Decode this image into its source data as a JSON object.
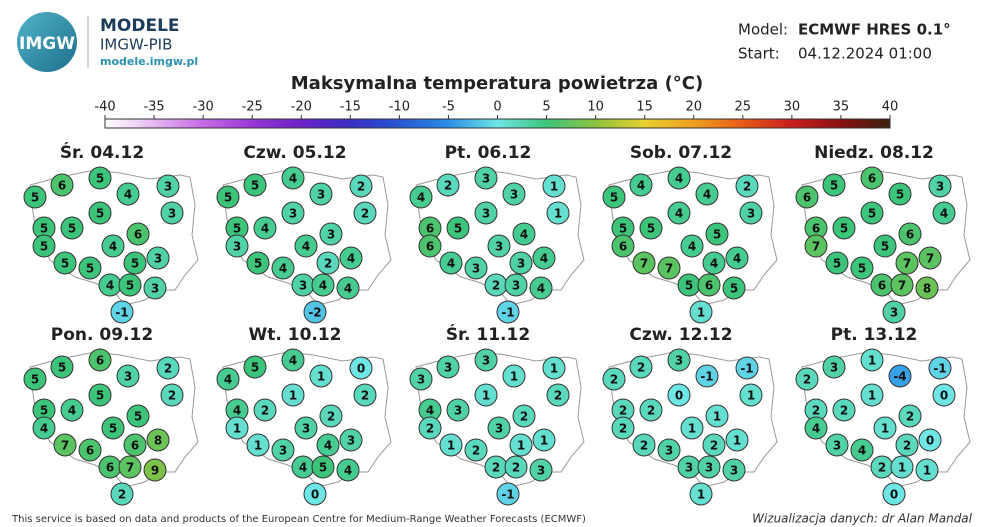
{
  "header": {
    "logo": "IMGW",
    "brand": "MODELE",
    "org": "IMGW-PIB",
    "url": "modele.imgw.pl",
    "model_label": "Model:",
    "model": "ECMWF HRES 0.1°",
    "start_label": "Start:",
    "start": "04.12.2024 01:00"
  },
  "title": "Maksymalna temperatura powietrza (°C)",
  "colorbar": {
    "ticks": [
      -40,
      -35,
      -30,
      -25,
      -20,
      -15,
      -10,
      -5,
      0,
      5,
      10,
      15,
      20,
      25,
      30,
      35,
      40
    ],
    "colors": [
      "#ffffff",
      "#e6b8f2",
      "#c86ae6",
      "#9a36d6",
      "#6a22c8",
      "#3a2ec4",
      "#2656d2",
      "#2a8ee6",
      "#6ee6e6",
      "#3cc47a",
      "#8cc23c",
      "#e8d030",
      "#f0a020",
      "#e85a18",
      "#c81e1e",
      "#8a1010",
      "#3a2010"
    ]
  },
  "maps": [
    {
      "date": "Śr. 04.12",
      "values": [
        5,
        6,
        5,
        4,
        3,
        3,
        5,
        5,
        5,
        5,
        4,
        6,
        5,
        5,
        5,
        3,
        4,
        5,
        3,
        -1
      ]
    },
    {
      "date": "Czw. 05.12",
      "values": [
        5,
        5,
        4,
        3,
        2,
        2,
        5,
        4,
        3,
        3,
        4,
        3,
        5,
        4,
        2,
        4,
        3,
        4,
        4,
        -2
      ]
    },
    {
      "date": "Pt. 06.12",
      "values": [
        4,
        2,
        3,
        3,
        1,
        1,
        6,
        5,
        3,
        6,
        3,
        4,
        4,
        3,
        3,
        4,
        2,
        3,
        4,
        -1
      ]
    },
    {
      "date": "Sob. 07.12",
      "values": [
        5,
        4,
        4,
        4,
        2,
        3,
        5,
        5,
        4,
        6,
        4,
        5,
        7,
        7,
        4,
        4,
        5,
        6,
        5,
        1
      ]
    },
    {
      "date": "Niedz. 08.12",
      "values": [
        6,
        5,
        6,
        5,
        3,
        4,
        6,
        5,
        5,
        7,
        5,
        6,
        5,
        5,
        7,
        7,
        6,
        7,
        8,
        3
      ]
    },
    {
      "date": "Pon. 09.12",
      "values": [
        5,
        5,
        6,
        3,
        2,
        2,
        5,
        4,
        5,
        4,
        5,
        5,
        7,
        6,
        6,
        8,
        6,
        7,
        9,
        2
      ]
    },
    {
      "date": "Wt. 10.12",
      "values": [
        4,
        5,
        4,
        1,
        0,
        2,
        4,
        2,
        1,
        1,
        3,
        2,
        1,
        3,
        4,
        3,
        4,
        5,
        4,
        0
      ]
    },
    {
      "date": "Śr. 11.12",
      "values": [
        3,
        3,
        3,
        1,
        1,
        2,
        4,
        3,
        1,
        2,
        3,
        2,
        1,
        2,
        1,
        1,
        2,
        2,
        3,
        -1
      ]
    },
    {
      "date": "Czw. 12.12",
      "values": [
        2,
        2,
        3,
        -1,
        -1,
        1,
        2,
        2,
        0,
        2,
        1,
        1,
        2,
        3,
        2,
        1,
        3,
        3,
        3,
        1
      ]
    },
    {
      "date": "Pt. 13.12",
      "values": [
        2,
        3,
        1,
        -4,
        -1,
        0,
        2,
        2,
        1,
        4,
        1,
        2,
        3,
        4,
        2,
        0,
        2,
        1,
        1,
        0
      ]
    }
  ],
  "footer": {
    "source": "This service is based on data and products of the European Centre for Medium-Range Weather Forecasts (ECMWF)",
    "credit": "Wizualizacja danych: dr Alan Mandal"
  }
}
